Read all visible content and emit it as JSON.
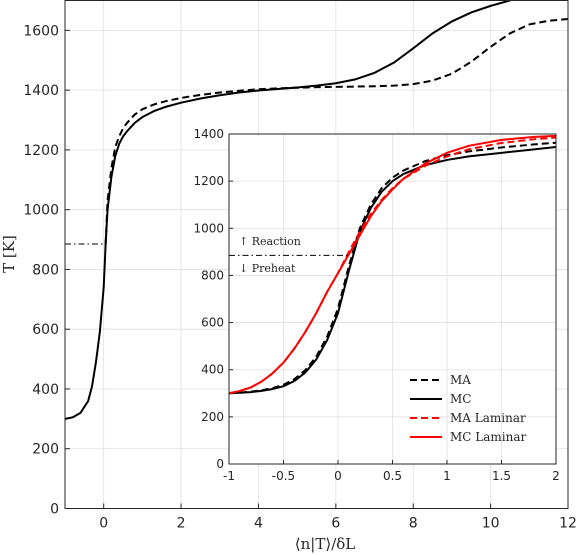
{
  "chart_data": [
    {
      "type": "line",
      "xlabel": "⟨n|T⟩/δL",
      "ylabel": "T [K]",
      "xlim": [
        -1,
        12
      ],
      "ylim": [
        0,
        1700
      ],
      "xticks": [
        0,
        2,
        4,
        6,
        8,
        10,
        12
      ],
      "yticks": [
        0,
        200,
        400,
        600,
        800,
        1000,
        1200,
        1400,
        1600
      ],
      "grid": true,
      "reference_line": {
        "y": 885,
        "x_range": [
          -1,
          0.05
        ],
        "style": "dash-dot"
      },
      "series": [
        {
          "name": "MA",
          "color": "#000000",
          "dash": "dashed",
          "x": [
            0.05,
            0.1,
            0.2,
            0.3,
            0.4,
            0.5,
            0.6,
            0.8,
            1.0,
            1.3,
            1.6,
            2.0,
            2.5,
            3.0,
            3.5,
            4.0,
            4.5,
            5.0,
            5.5,
            6.0,
            6.5,
            7.0,
            7.5,
            8.0,
            8.5,
            9.0,
            9.5,
            10.0,
            10.5,
            11.0,
            11.5,
            12.0
          ],
          "y": [
            885,
            1030,
            1140,
            1210,
            1245,
            1272,
            1290,
            1318,
            1336,
            1352,
            1363,
            1374,
            1384,
            1392,
            1398,
            1403,
            1406,
            1408,
            1410,
            1411,
            1412,
            1413,
            1415,
            1420,
            1432,
            1455,
            1495,
            1545,
            1590,
            1620,
            1632,
            1638
          ]
        },
        {
          "name": "MC",
          "color": "#000000",
          "dash": "solid",
          "x": [
            -1.0,
            -0.8,
            -0.6,
            -0.4,
            -0.3,
            -0.2,
            -0.1,
            0.0,
            0.05,
            0.1,
            0.2,
            0.3,
            0.4,
            0.5,
            0.6,
            0.8,
            1.0,
            1.3,
            1.6,
            2.0,
            2.5,
            3.0,
            3.5,
            4.0,
            4.5,
            5.0,
            5.5,
            6.0,
            6.5,
            7.0,
            7.5,
            8.0,
            8.5,
            9.0,
            9.5,
            10.0,
            10.5
          ],
          "y": [
            300,
            305,
            320,
            360,
            410,
            490,
            590,
            740,
            885,
            1000,
            1110,
            1180,
            1220,
            1245,
            1262,
            1290,
            1310,
            1330,
            1344,
            1358,
            1372,
            1383,
            1392,
            1399,
            1404,
            1409,
            1415,
            1423,
            1436,
            1458,
            1492,
            1540,
            1590,
            1630,
            1660,
            1682,
            1700
          ]
        }
      ]
    },
    {
      "type": "line",
      "inset": true,
      "xlim": [
        -1,
        2
      ],
      "ylim": [
        0,
        1400
      ],
      "xticks": [
        "-1",
        "-0.5",
        "0",
        "0.5",
        "1",
        "1.5",
        "2"
      ],
      "yticks": [
        0,
        200,
        400,
        600,
        800,
        1000,
        1200,
        1400
      ],
      "grid": true,
      "reference_line": {
        "y": 885,
        "style": "dash-dot"
      },
      "annotations": {
        "above": "↑ Reaction",
        "below": "↓ Preheat"
      },
      "legend_position": "bottom-right",
      "series": [
        {
          "name": "MA",
          "color": "#000000",
          "dash": "dashed",
          "x": [
            -1.0,
            -0.9,
            -0.8,
            -0.7,
            -0.6,
            -0.5,
            -0.4,
            -0.3,
            -0.2,
            -0.1,
            0.0,
            0.1,
            0.2,
            0.3,
            0.4,
            0.5,
            0.6,
            0.8,
            1.0,
            1.2,
            1.5,
            1.8,
            2.0
          ],
          "y": [
            300,
            303,
            307,
            313,
            322,
            336,
            360,
            398,
            455,
            540,
            660,
            840,
            1000,
            1100,
            1170,
            1215,
            1245,
            1285,
            1310,
            1326,
            1343,
            1356,
            1363
          ]
        },
        {
          "name": "MC",
          "color": "#000000",
          "dash": "solid",
          "x": [
            -1.0,
            -0.9,
            -0.8,
            -0.7,
            -0.6,
            -0.5,
            -0.4,
            -0.3,
            -0.2,
            -0.1,
            0.0,
            0.1,
            0.2,
            0.3,
            0.4,
            0.5,
            0.6,
            0.8,
            1.0,
            1.2,
            1.5,
            1.8,
            2.0
          ],
          "y": [
            300,
            302,
            305,
            310,
            318,
            330,
            352,
            388,
            443,
            525,
            640,
            820,
            985,
            1085,
            1155,
            1200,
            1230,
            1268,
            1290,
            1305,
            1320,
            1335,
            1345
          ]
        },
        {
          "name": "MA Laminar",
          "color": "#ff0000",
          "dash": "dashed",
          "x": [
            -1.0,
            -0.9,
            -0.8,
            -0.7,
            -0.6,
            -0.5,
            -0.4,
            -0.3,
            -0.2,
            -0.1,
            0.0,
            0.1,
            0.2,
            0.3,
            0.4,
            0.5,
            0.6,
            0.8,
            1.0,
            1.2,
            1.5,
            1.8,
            2.0
          ],
          "y": [
            300,
            310,
            325,
            350,
            385,
            430,
            490,
            560,
            640,
            730,
            810,
            900,
            985,
            1060,
            1120,
            1170,
            1210,
            1265,
            1305,
            1335,
            1362,
            1378,
            1385
          ]
        },
        {
          "name": "MC Laminar",
          "color": "#ff0000",
          "dash": "solid",
          "x": [
            -1.0,
            -0.9,
            -0.8,
            -0.7,
            -0.6,
            -0.5,
            -0.4,
            -0.3,
            -0.2,
            -0.1,
            0.0,
            0.1,
            0.2,
            0.3,
            0.4,
            0.5,
            0.6,
            0.8,
            1.0,
            1.2,
            1.5,
            1.8,
            2.0
          ],
          "y": [
            300,
            310,
            325,
            350,
            385,
            430,
            490,
            560,
            640,
            730,
            810,
            890,
            970,
            1050,
            1115,
            1165,
            1210,
            1275,
            1320,
            1350,
            1375,
            1388,
            1392
          ]
        }
      ]
    }
  ]
}
